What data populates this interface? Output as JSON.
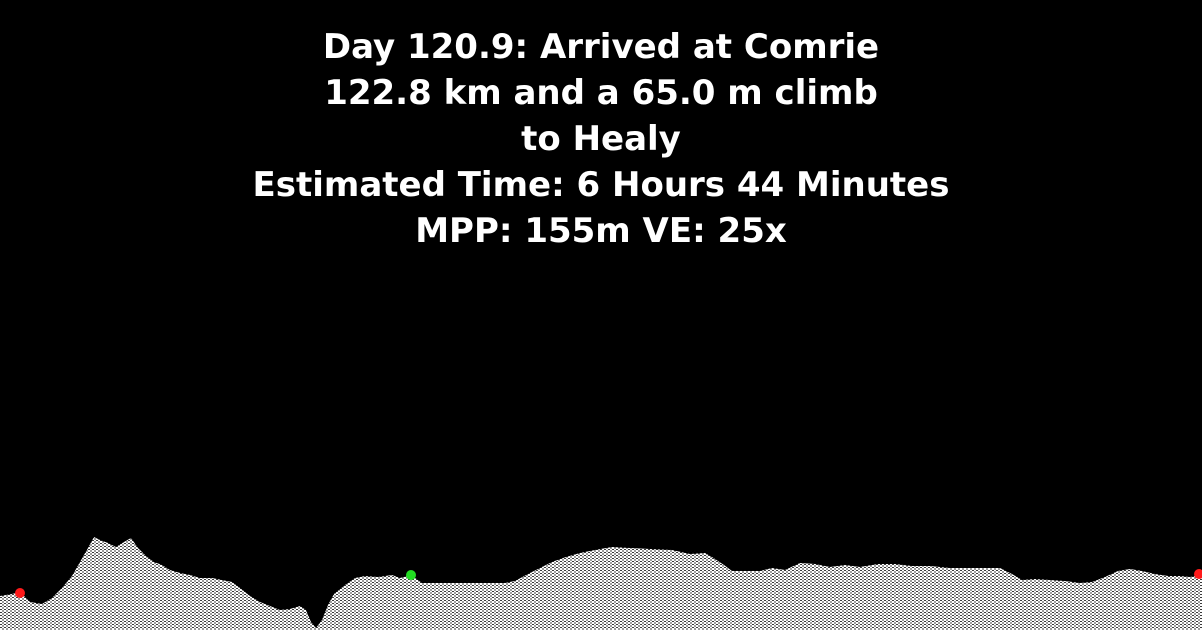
{
  "header": {
    "line1": "Day 120.9: Arrived at Comrie",
    "line2": "122.8 km and a 65.0 m climb",
    "line3": "to Healy",
    "line4": "Estimated Time: 6 Hours 44 Minutes",
    "line5": "MPP: 155m VE: 25x"
  },
  "colors": {
    "background": "#000000",
    "text": "#ffffff",
    "terrain_fill": "#ffffff",
    "terrain_pattern": "#3a3a3a",
    "start_marker": "#ff1a1a",
    "current_marker": "#22dd22",
    "end_marker": "#ff1a1a"
  }
}
